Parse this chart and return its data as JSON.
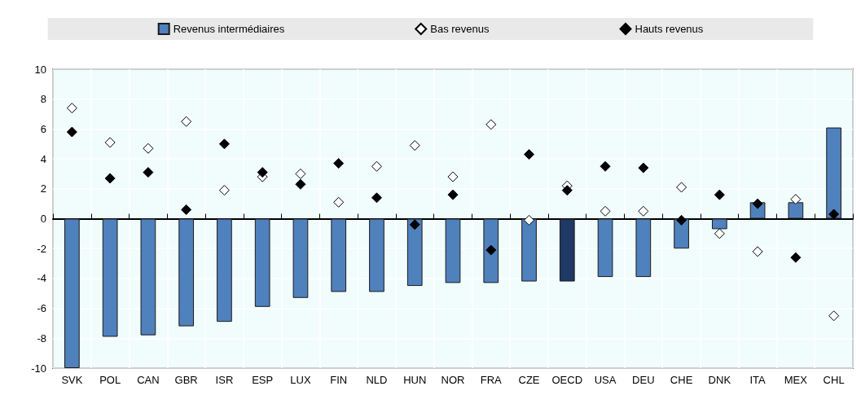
{
  "chart_data": {
    "type": "bar",
    "categories": [
      "SVK",
      "POL",
      "CAN",
      "GBR",
      "ISR",
      "ESP",
      "LUX",
      "FIN",
      "NLD",
      "HUN",
      "NOR",
      "FRA",
      "CZE",
      "OECD",
      "USA",
      "DEU",
      "CHE",
      "DNK",
      "ITA",
      "MEX",
      "CHL"
    ],
    "series": [
      {
        "name": "Revenus intermédiaires",
        "color": "#4f81bd",
        "colors": [
          "#4f81bd",
          "#4f81bd",
          "#4f81bd",
          "#4f81bd",
          "#4f81bd",
          "#4f81bd",
          "#4f81bd",
          "#4f81bd",
          "#4f81bd",
          "#4f81bd",
          "#4f81bd",
          "#4f81bd",
          "#4f81bd",
          "#1f3864",
          "#4f81bd",
          "#4f81bd",
          "#4f81bd",
          "#4f81bd",
          "#4f81bd",
          "#4f81bd",
          "#4f81bd"
        ],
        "values": [
          -10,
          -7.9,
          -7.8,
          -7.2,
          -6.9,
          -5.9,
          -5.3,
          -4.9,
          -4.9,
          -4.5,
          -4.3,
          -4.3,
          -4.2,
          -4.2,
          -3.9,
          -3.9,
          -2.0,
          -0.7,
          1.1,
          1.1,
          6.1
        ]
      },
      {
        "name": "Bas revenus",
        "type": "scatter",
        "color": "#ffffff",
        "values": [
          7.4,
          5.1,
          4.7,
          6.5,
          1.9,
          2.8,
          3.0,
          1.1,
          3.5,
          4.9,
          2.8,
          6.3,
          -0.1,
          2.2,
          0.5,
          0.5,
          2.1,
          -1.0,
          -2.2,
          1.3,
          -6.5
        ]
      },
      {
        "name": "Hauts revenus",
        "type": "scatter",
        "color": "#000000",
        "values": [
          5.8,
          2.7,
          3.1,
          0.6,
          5.0,
          3.1,
          2.3,
          3.7,
          1.4,
          -0.4,
          1.6,
          -2.1,
          4.3,
          1.9,
          3.5,
          3.4,
          -0.1,
          1.6,
          1.0,
          -2.6,
          0.3
        ]
      }
    ],
    "ylim": [
      -10,
      10
    ],
    "yticks": [
      -10,
      -8,
      -6,
      -4,
      -2,
      0,
      2,
      4,
      6,
      8,
      10
    ],
    "grid": true,
    "legend": "top",
    "marker": "diamond"
  }
}
